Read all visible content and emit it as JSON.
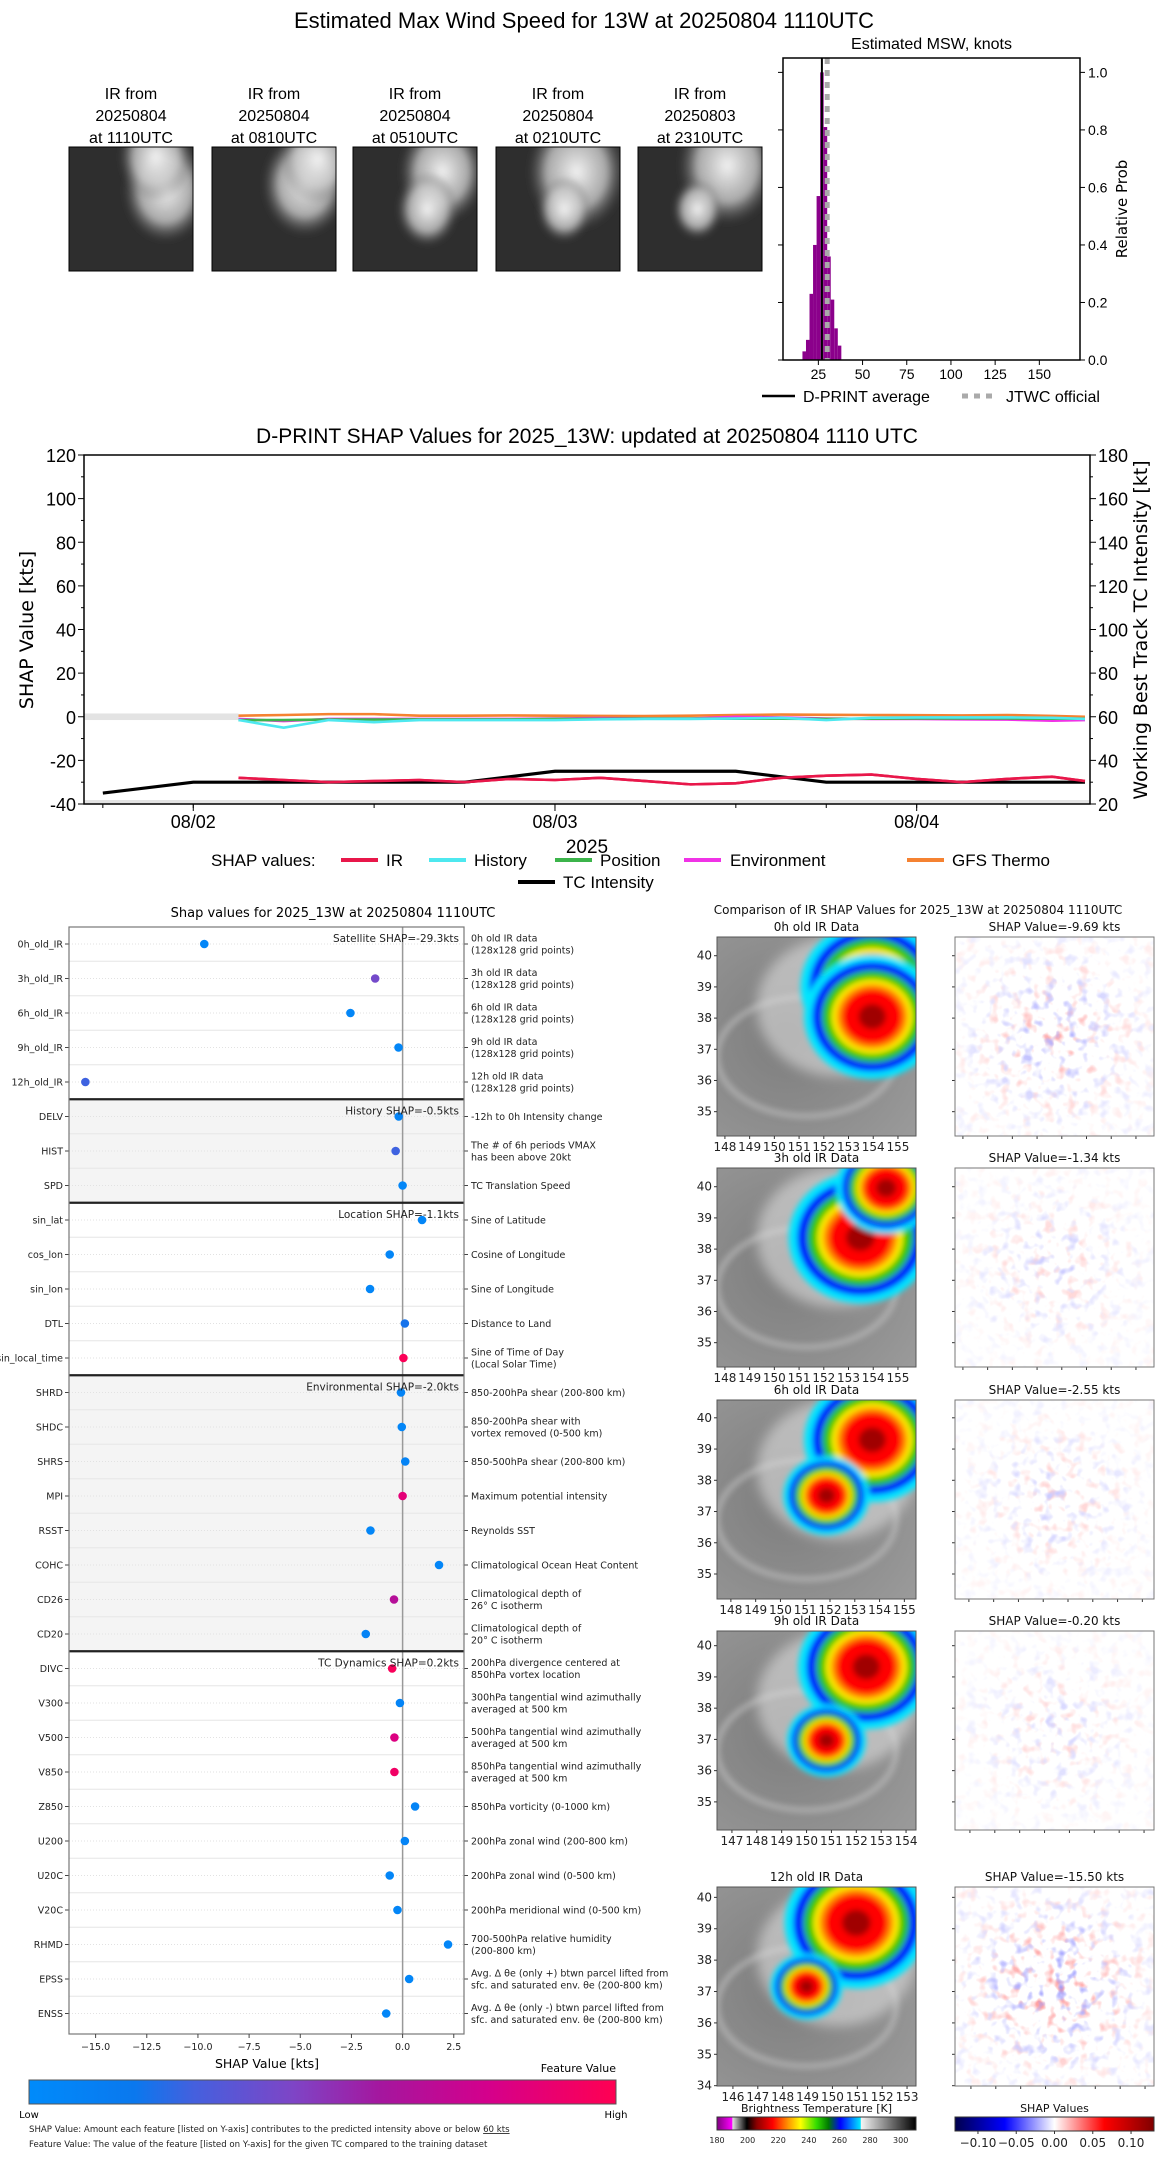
{
  "title": "Estimated Max Wind Speed for 13W at 20250804 1110UTC",
  "thumbnails": [
    {
      "label": [
        "IR from",
        "20250804",
        "at 1110UTC"
      ]
    },
    {
      "label": [
        "IR from",
        "20250804",
        "at 0810UTC"
      ]
    },
    {
      "label": [
        "IR from",
        "20250804",
        "at 0510UTC"
      ]
    },
    {
      "label": [
        "IR from",
        "20250804",
        "at 0210UTC"
      ]
    },
    {
      "label": [
        "IR from",
        "20250803",
        "at 2310UTC"
      ]
    }
  ],
  "chart_data": [
    {
      "type": "bar",
      "title": "Estimated MSW, knots",
      "ylabel": "Relative Prob",
      "xlim": [
        5,
        173
      ],
      "ylim": [
        0,
        1.05
      ],
      "xticks": [
        25,
        50,
        75,
        100,
        125,
        150
      ],
      "xtick_labels": [
        "25",
        "50",
        "75",
        "100",
        "125",
        "150"
      ],
      "yticks": [
        0,
        0.2,
        0.4,
        0.6,
        0.8,
        1.0
      ],
      "ytick_labels": [
        "0.0",
        "0.2",
        "0.4",
        "0.6",
        "0.8",
        "1.0"
      ],
      "bin_width": 2,
      "bins": [
        16,
        18,
        20,
        22,
        24,
        26,
        28,
        30,
        32,
        34,
        36
      ],
      "values": [
        0.03,
        0.07,
        0.23,
        0.4,
        0.57,
        1.0,
        0.81,
        0.36,
        0.21,
        0.11,
        0.05
      ],
      "bar_color": "#8b008b",
      "dprint_average": 27,
      "jtwc_official": 30,
      "legend": [
        "D-PRINT average",
        "JTWC official"
      ],
      "legend_placement": "bottom"
    },
    {
      "type": "line",
      "title": "D-PRINT SHAP Values for 2025_13W: updated at 20250804 1110 UTC",
      "ylabel": "SHAP Value [kts]",
      "y2label": "Working Best Track TC Intensity [kt]",
      "xlabel": "2025",
      "xlim": [
        "2025-08-01 16:45",
        "2025-08-04 11:30"
      ],
      "xticks": [
        "2025-08-02 00:00",
        "2025-08-03 00:00",
        "2025-08-04 00:00"
      ],
      "xtick_labels": [
        "08/02",
        "08/03",
        "08/04"
      ],
      "ylim": [
        -40,
        120
      ],
      "yticks": [
        -40,
        -20,
        0,
        20,
        40,
        60,
        80,
        100,
        120
      ],
      "y2lim": [
        20,
        180
      ],
      "y2ticks": [
        20,
        40,
        60,
        80,
        100,
        120,
        140,
        160,
        180
      ],
      "legend_title": "SHAP values:",
      "times": [
        "2025-08-02 03:00",
        "2025-08-02 06:00",
        "2025-08-02 09:00",
        "2025-08-02 12:00",
        "2025-08-02 15:00",
        "2025-08-02 18:00",
        "2025-08-02 21:00",
        "2025-08-03 00:00",
        "2025-08-03 03:00",
        "2025-08-03 06:00",
        "2025-08-03 09:00",
        "2025-08-03 12:00",
        "2025-08-03 15:00",
        "2025-08-03 18:00",
        "2025-08-03 21:00",
        "2025-08-04 00:00",
        "2025-08-04 03:00",
        "2025-08-04 06:00",
        "2025-08-04 09:00",
        "2025-08-04 11:10"
      ],
      "series": [
        {
          "name": "IR",
          "color": "#e8174a",
          "values": [
            -28,
            -29,
            -30,
            -29.5,
            -29,
            -30,
            -28.5,
            -29,
            -28,
            -29.5,
            -31,
            -30.5,
            -28,
            -27,
            -26.5,
            -28.5,
            -30,
            -28.5,
            -27.5,
            -29.5
          ]
        },
        {
          "name": "History",
          "color": "#4ee8ef",
          "values": [
            -1.5,
            -5,
            -1.5,
            -2.5,
            -1.5,
            -1.5,
            -1.5,
            -1.5,
            -1.2,
            -1,
            -1,
            -0.8,
            -0.5,
            -1.5,
            -0.5,
            -0.3,
            -0.3,
            -0.3,
            -0.5,
            -1
          ]
        },
        {
          "name": "Position",
          "color": "#3cb44b",
          "values": [
            -1.5,
            -1.5,
            -1.3,
            -1.3,
            -1.2,
            -1.2,
            -1.2,
            -1,
            -1,
            -0.8,
            -0.8,
            -0.9,
            -0.9,
            -1,
            -0.9,
            -0.8,
            -0.8,
            -0.8,
            -0.9,
            -0.9
          ]
        },
        {
          "name": "Environment",
          "color": "#f032e6",
          "values": [
            -1,
            -2,
            -1,
            -1,
            -1,
            -1,
            -1,
            -0.8,
            -0.6,
            -0.8,
            -0.8,
            0,
            -0.3,
            -0.8,
            -1,
            -1,
            -1.2,
            -1.3,
            -1.8,
            -1.5
          ]
        },
        {
          "name": "GFS Thermo",
          "color": "#f58231",
          "values": [
            0.5,
            0.8,
            1.2,
            1.2,
            0.5,
            0.5,
            0.6,
            0.5,
            0.4,
            0.3,
            0.5,
            0.8,
            1,
            0.9,
            0.8,
            0.7,
            0.6,
            0.8,
            0.4,
            0
          ]
        }
      ],
      "tc_intensity": {
        "name": "TC Intensity",
        "color": "#000000",
        "times": [
          "2025-08-01 18:00",
          "2025-08-02 00:00",
          "2025-08-02 18:00",
          "2025-08-03 00:00",
          "2025-08-03 12:00",
          "2025-08-03 18:00",
          "2025-08-04 11:10"
        ],
        "values": [
          25,
          30,
          30,
          35,
          35,
          30,
          30
        ]
      },
      "legend_placement": "bottom"
    },
    {
      "type": "scatter",
      "title": "Shap values for 2025_13W at 20250804 1110UTC",
      "xlabel": "SHAP Value [kts]",
      "xlim": [
        -16.3,
        3.0
      ],
      "xticks": [
        -15,
        -12.5,
        -10,
        -7.5,
        -5,
        -2.5,
        0,
        2.5
      ],
      "xtick_labels": [
        "−15.0",
        "−12.5",
        "−10.0",
        "−7.5",
        "−5.0",
        "−2.5",
        "0.0",
        "2.5"
      ],
      "groups": [
        {
          "annotation": "Satellite SHAP=-29.3kts",
          "shaded": false,
          "features": [
            {
              "name": "0h_old_IR",
              "desc": [
                "0h old IR data",
                "(128x128 grid points)"
              ],
              "shap": -9.69,
              "feature_value": 0.05
            },
            {
              "name": "3h_old_IR",
              "desc": [
                "3h old IR data",
                "(128x128 grid points)"
              ],
              "shap": -1.34,
              "feature_value": 0.42
            },
            {
              "name": "6h_old_IR",
              "desc": [
                "6h old IR data",
                "(128x128 grid points)"
              ],
              "shap": -2.55,
              "feature_value": 0.05
            },
            {
              "name": "9h_old_IR",
              "desc": [
                "9h old IR data",
                "(128x128 grid points)"
              ],
              "shap": -0.2,
              "feature_value": 0.05
            },
            {
              "name": "12h_old_IR",
              "desc": [
                "12h old IR data",
                "(128x128 grid points)"
              ],
              "shap": -15.5,
              "feature_value": 0.27
            }
          ]
        },
        {
          "annotation": "History SHAP=-0.5kts",
          "shaded": true,
          "features": [
            {
              "name": "DELV",
              "desc": [
                "-12h to 0h Intensity change"
              ],
              "shap": -0.19,
              "feature_value": 0.08
            },
            {
              "name": "HIST",
              "desc": [
                "The # of 6h periods VMAX",
                "has been above 20kt"
              ],
              "shap": -0.34,
              "feature_value": 0.27
            },
            {
              "name": "SPD",
              "desc": [
                "TC Translation Speed"
              ],
              "shap": 0.0,
              "feature_value": 0.05
            }
          ]
        },
        {
          "annotation": "Location SHAP=-1.1kts",
          "shaded": false,
          "features": [
            {
              "name": "sin_lat",
              "desc": [
                "Sine of Latitude"
              ],
              "shap": 0.95,
              "feature_value": 0.05
            },
            {
              "name": "cos_lon",
              "desc": [
                "Cosine of Longitude"
              ],
              "shap": -0.63,
              "feature_value": 0.05
            },
            {
              "name": "sin_lon",
              "desc": [
                "Sine of Longitude"
              ],
              "shap": -1.59,
              "feature_value": 0.05
            },
            {
              "name": "DTL",
              "desc": [
                "Distance to Land"
              ],
              "shap": 0.11,
              "feature_value": 0.2
            },
            {
              "name": "sin_local_time",
              "desc": [
                "Sine of Time of Day",
                "(Local Solar Time)"
              ],
              "shap": 0.04,
              "feature_value": 0.98
            }
          ]
        },
        {
          "annotation": "Environmental SHAP=-2.0kts",
          "shaded": true,
          "features": [
            {
              "name": "SHRD",
              "desc": [
                "850-200hPa shear (200-800 km)"
              ],
              "shap": -0.08,
              "feature_value": 0.08
            },
            {
              "name": "SHDC",
              "desc": [
                "850-200hPa shear with",
                "vortex removed (0-500 km)"
              ],
              "shap": -0.04,
              "feature_value": 0.05
            },
            {
              "name": "SHRS",
              "desc": [
                "850-500hPa shear (200-800 km)"
              ],
              "shap": 0.13,
              "feature_value": 0.08
            },
            {
              "name": "MPI",
              "desc": [
                "Maximum potential intensity"
              ],
              "shap": 0.0,
              "feature_value": 0.86
            },
            {
              "name": "RSST",
              "desc": [
                "Reynolds SST"
              ],
              "shap": -1.57,
              "feature_value": 0.05
            },
            {
              "name": "COHC",
              "desc": [
                "Climatological Ocean Heat Content"
              ],
              "shap": 1.78,
              "feature_value": 0.05
            },
            {
              "name": "CD26",
              "desc": [
                "Climatological depth of",
                "26° C isotherm"
              ],
              "shap": -0.42,
              "feature_value": 0.66
            },
            {
              "name": "CD20",
              "desc": [
                "Climatological depth of",
                "20° C isotherm"
              ],
              "shap": -1.8,
              "feature_value": 0.08
            }
          ]
        },
        {
          "annotation": "TC Dynamics SHAP=0.2kts",
          "shaded": false,
          "features": [
            {
              "name": "DIVC",
              "desc": [
                "200hPa divergence centered at",
                "850hPa vortex location"
              ],
              "shap": -0.51,
              "feature_value": 0.97
            },
            {
              "name": "V300",
              "desc": [
                "300hPa tangential wind azimuthally",
                "averaged at 500 km"
              ],
              "shap": -0.13,
              "feature_value": 0.07
            },
            {
              "name": "V500",
              "desc": [
                "500hPa tangential wind azimuthally",
                "averaged at 500 km"
              ],
              "shap": -0.4,
              "feature_value": 0.82
            },
            {
              "name": "V850",
              "desc": [
                "850hPa tangential wind azimuthally",
                "averaged at 500 km"
              ],
              "shap": -0.4,
              "feature_value": 0.93
            },
            {
              "name": "Z850",
              "desc": [
                "850hPa vorticity (0-1000 km)"
              ],
              "shap": 0.61,
              "feature_value": 0.07
            },
            {
              "name": "U200",
              "desc": [
                "200hPa zonal wind (200-800 km)"
              ],
              "shap": 0.11,
              "feature_value": 0.07
            },
            {
              "name": "U20C",
              "desc": [
                "200hPa zonal wind (0-500 km)"
              ],
              "shap": -0.63,
              "feature_value": 0.05
            },
            {
              "name": "V20C",
              "desc": [
                "200hPa meridional wind (0-500 km)"
              ],
              "shap": -0.25,
              "feature_value": 0.05
            },
            {
              "name": "RHMD",
              "desc": [
                "700-500hPa relative humidity",
                "(200-800 km)"
              ],
              "shap": 2.22,
              "feature_value": 0.05
            },
            {
              "name": "EPSS",
              "desc": [
                "Avg. Δ θe (only +) btwn parcel lifted from",
                "sfc. and saturated env. θe (200-800 km)"
              ],
              "shap": 0.32,
              "feature_value": 0.05
            },
            {
              "name": "ENSS",
              "desc": [
                "Avg. Δ θe (only -) btwn parcel lifted from",
                "sfc. and saturated env. θe (200-800 km)"
              ],
              "shap": -0.8,
              "feature_value": 0.05
            }
          ]
        }
      ],
      "colorbar": {
        "label": "Feature Value",
        "low": "Low",
        "high": "High",
        "low_color": "#008bfb",
        "high_color": "#ff0052"
      },
      "footnotes": {
        "shap_prefix": "SHAP Value: Amount each feature [listed on Y-axis] contributes to the predicted intensity above or below ",
        "shap_ref": "60 kts",
        "feature": "Feature Value: The value of the feature [listed on Y-axis] for the given TC compared to the training dataset"
      }
    }
  ],
  "ir_comparison": {
    "title": "Comparison of IR SHAP Values for 2025_13W at 20250804 1110UTC",
    "rows": [
      {
        "ir_title": "0h old IR Data",
        "shap_title": "SHAP Value=-9.69 kts",
        "lon_range": [
          147.68,
          155.73
        ],
        "lat_range": [
          34.22,
          40.6
        ],
        "lon_ticks": [
          148,
          149,
          150,
          151,
          152,
          153,
          154,
          155
        ],
        "lat_ticks": [
          35,
          36,
          37,
          38,
          39,
          40
        ]
      },
      {
        "ir_title": "3h old IR Data",
        "shap_title": "SHAP Value=-1.34 kts",
        "lon_range": [
          147.68,
          155.73
        ],
        "lat_range": [
          34.22,
          40.6
        ],
        "lon_ticks": [
          148,
          149,
          150,
          151,
          152,
          153,
          154,
          155
        ],
        "lat_ticks": [
          35,
          36,
          37,
          38,
          39,
          40
        ]
      },
      {
        "ir_title": "6h old IR Data",
        "shap_title": "SHAP Value=-2.55 kts",
        "lon_range": [
          147.44,
          155.47
        ],
        "lat_range": [
          34.2,
          40.57
        ],
        "lon_ticks": [
          148,
          149,
          150,
          151,
          152,
          153,
          154,
          155
        ],
        "lat_ticks": [
          35,
          36,
          37,
          38,
          39,
          40
        ]
      },
      {
        "ir_title": "9h old IR Data",
        "shap_title": "SHAP Value=-0.20 kts",
        "lon_range": [
          146.4,
          154.4
        ],
        "lat_range": [
          34.1,
          40.47
        ],
        "lon_ticks": [
          147,
          148,
          149,
          150,
          151,
          152,
          153,
          154
        ],
        "lat_ticks": [
          35,
          36,
          37,
          38,
          39,
          40
        ]
      },
      {
        "ir_title": "12h old IR Data",
        "shap_title": "SHAP Value=-15.50 kts",
        "lon_range": [
          145.36,
          153.36
        ],
        "lat_range": [
          33.99,
          40.33
        ],
        "lon_ticks": [
          146,
          147,
          148,
          149,
          150,
          151,
          152,
          153
        ],
        "lat_ticks": [
          34,
          35,
          36,
          37,
          38,
          39,
          40
        ]
      }
    ],
    "bt_colorbar": {
      "label": "Brightness Temperature [K]",
      "range": [
        180,
        310
      ],
      "ticks": [
        180,
        200,
        220,
        240,
        260,
        280,
        300
      ],
      "tick_labels": [
        "180",
        "200",
        "220",
        "240",
        "260",
        "280",
        "300"
      ]
    },
    "shap_colorbar": {
      "label": "SHAP Values",
      "range": [
        -0.13,
        0.13
      ],
      "ticks": [
        -0.1,
        -0.05,
        0.0,
        0.05,
        0.1
      ],
      "tick_labels": [
        "−0.10",
        "−0.05",
        "0.00",
        "0.05",
        "0.10"
      ]
    }
  }
}
